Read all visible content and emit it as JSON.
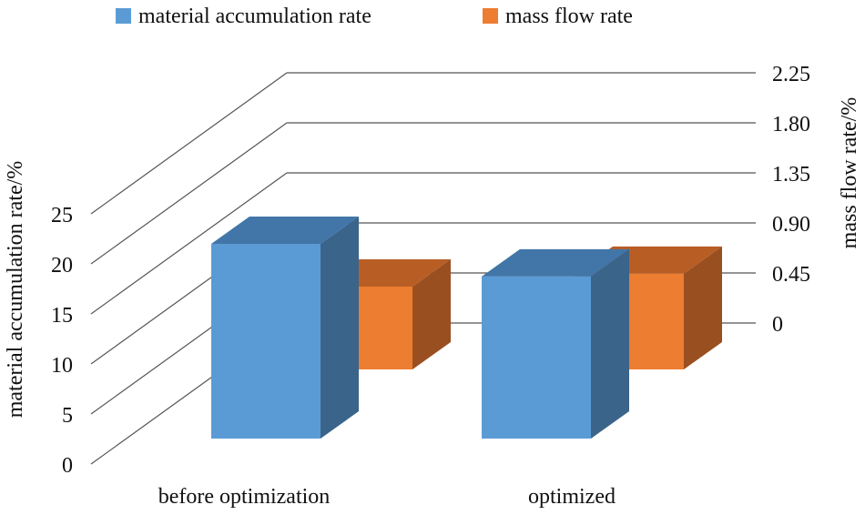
{
  "chart_data": {
    "type": "bar",
    "categories": [
      "before optimization",
      "optimized"
    ],
    "series": [
      {
        "name": "material accumulation rate",
        "axis": "left",
        "values": [
          21.5,
          17.9
        ],
        "color": "#5B9BD5",
        "side_color": "#3A648A",
        "top_color": "#4276A8"
      },
      {
        "name": "mass flow rate",
        "axis": "right",
        "values": [
          0.45,
          0.52
        ],
        "color": "#ED7D31",
        "side_color": "#9A4F20",
        "top_color": "#B85E25"
      }
    ],
    "y_left": {
      "label": "material accumulation rate/%",
      "ticks": [
        0,
        5,
        10,
        15,
        20,
        25
      ],
      "lim": [
        0,
        25
      ]
    },
    "y_right": {
      "label": "mass flow rate/%",
      "ticks": [
        "0",
        "0.45",
        "0.90",
        "1.35",
        "1.80",
        "2.25"
      ],
      "lim": [
        0,
        2.25
      ]
    },
    "legend_position": "top",
    "grid": true
  }
}
